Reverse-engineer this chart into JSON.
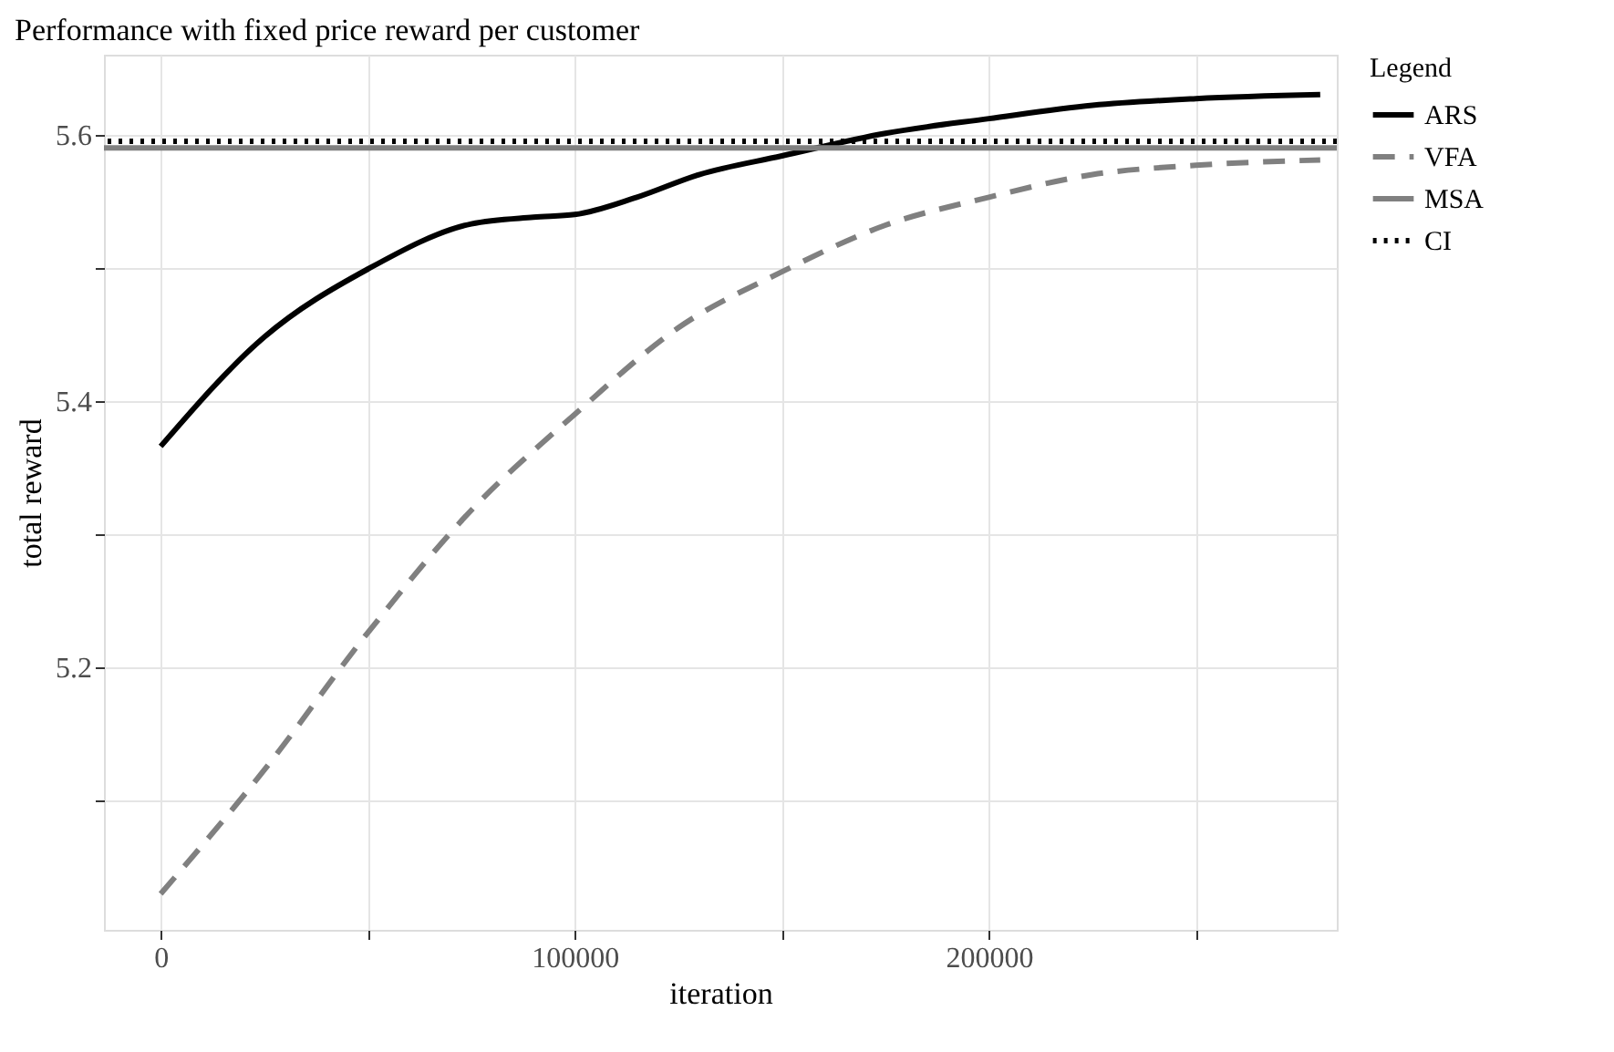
{
  "chart_data": {
    "type": "line",
    "title": "Performance with fixed price reward per customer",
    "xlabel": "iteration",
    "ylabel": "total reward",
    "legend_title": "Legend",
    "series": [
      {
        "name": "ARS",
        "color": "#000000",
        "line_style": "solid",
        "x": [
          0,
          25000,
          50000,
          75000,
          90000,
          100000,
          115000,
          130000,
          150000,
          175000,
          200000,
          225000,
          250000,
          280000
        ],
        "values": [
          5.366,
          5.448,
          5.499,
          5.533,
          5.538,
          5.54,
          5.553,
          5.57,
          5.584,
          5.601,
          5.612,
          5.622,
          5.627,
          5.63
        ]
      },
      {
        "name": "VFA",
        "color": "#808080",
        "line_style": "dashed",
        "x": [
          0,
          25000,
          50000,
          75000,
          100000,
          125000,
          150000,
          175000,
          200000,
          225000,
          250000,
          280000
        ],
        "values": [
          5.03,
          5.123,
          5.226,
          5.318,
          5.39,
          5.455,
          5.497,
          5.532,
          5.553,
          5.57,
          5.577,
          5.581
        ]
      }
    ],
    "ref_lines": [
      {
        "axis": "y",
        "value": 5.59,
        "label": "MSA",
        "color": "#808080",
        "line_style": "solid"
      },
      {
        "axis": "y",
        "value": 5.595,
        "label": "CI",
        "color": "#000000",
        "line_style": "dotted"
      }
    ],
    "xlim": [
      -13700,
      284000
    ],
    "ylim": [
      5.003,
      5.66
    ],
    "xticks": [
      0,
      {
        "value": 50000,
        "label": null
      },
      100000,
      {
        "value": 150000,
        "label": null
      },
      200000,
      {
        "value": 250000,
        "label": null
      }
    ],
    "yticks": [
      {
        "value": 5.1,
        "label": null
      },
      5.2,
      {
        "value": 5.3,
        "label": null
      },
      5.4,
      {
        "value": 5.5,
        "label": null
      },
      5.6
    ],
    "grid": true,
    "legend": "right",
    "marker": "none"
  }
}
